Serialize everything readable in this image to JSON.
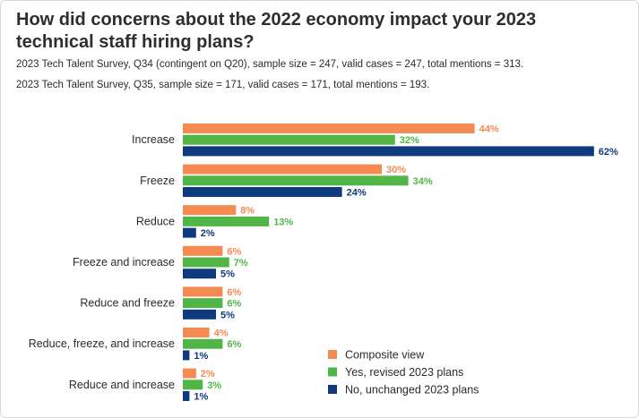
{
  "chart_data": {
    "type": "bar",
    "orientation": "horizontal",
    "title": "How did concerns about the 2022 economy impact your 2023 technical staff hiring plans?",
    "subtitles": [
      "2023 Tech Talent Survey, Q34 (contingent on Q20), sample size = 247, valid cases = 247, total mentions = 313.",
      "2023 Tech Talent Survey, Q35, sample size = 171, valid cases = 171, total mentions = 193."
    ],
    "categories": [
      "Increase",
      "Freeze",
      "Reduce",
      "Freeze and increase",
      "Reduce and freeze",
      "Reduce, freeze, and increase",
      "Reduce and increase"
    ],
    "series": [
      {
        "name": "Composite view",
        "color": "#f58b52",
        "values": [
          44,
          30,
          8,
          6,
          6,
          4,
          2
        ]
      },
      {
        "name": "Yes, revised 2023 plans",
        "color": "#52b548",
        "values": [
          32,
          34,
          13,
          7,
          6,
          6,
          3
        ]
      },
      {
        "name": "No, unchanged 2023 plans",
        "color": "#0f3a7e",
        "values": [
          62,
          24,
          2,
          5,
          5,
          1,
          1
        ]
      }
    ],
    "value_suffix": "%",
    "xlim": [
      0,
      100
    ],
    "legend_position": "bottom-right",
    "grid": false
  }
}
